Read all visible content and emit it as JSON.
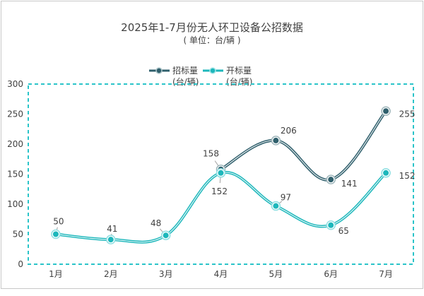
{
  "chart_data": {
    "type": "line",
    "title": "2025年1-7月份无人环卫设备公招数据",
    "subtitle": "( 单位：台/辆 )",
    "categories": [
      "1月",
      "2月",
      "3月",
      "4月",
      "5月",
      "6月",
      "7月"
    ],
    "series": [
      {
        "name": "招标量\n(台/辆)",
        "name_line1": "招标量",
        "name_line2": "(台/辆)",
        "values": [
          null,
          null,
          null,
          158,
          206,
          141,
          255
        ],
        "color": "#2f5f6c"
      },
      {
        "name": "开标量\n(台/辆)",
        "name_line1": "开标量",
        "name_line2": "(台/辆)",
        "values": [
          50,
          41,
          48,
          152,
          97,
          65,
          152
        ],
        "color": "#1db7bb"
      }
    ],
    "yticks": [
      "0",
      "50",
      "100",
      "150",
      "200",
      "250",
      "300"
    ],
    "ylim": [
      0,
      300
    ],
    "smooth": true,
    "data_labels": true,
    "grid": false,
    "legend": "top",
    "plot_border_color": "#2bc4c9"
  }
}
